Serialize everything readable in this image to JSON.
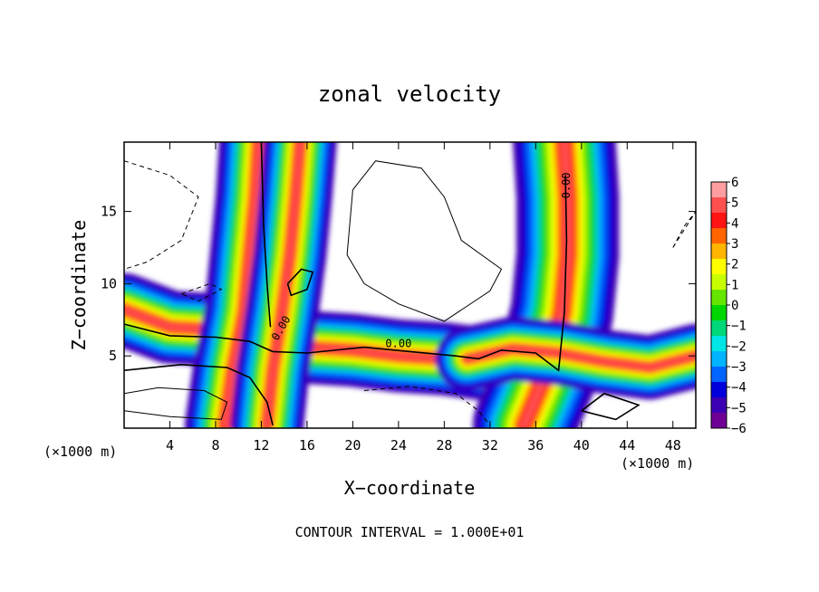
{
  "chart_data": {
    "type": "heatmap",
    "title": "zonal velocity",
    "xlabel": "X−coordinate",
    "ylabel": "Z−coordinate",
    "xlim": [
      0,
      50
    ],
    "ylim": [
      0,
      19.8
    ],
    "x_unit_left": "(×1000 m)",
    "x_unit_right": "(×1000 m)",
    "x_ticks": [
      4,
      8,
      12,
      16,
      20,
      24,
      28,
      32,
      36,
      40,
      44,
      48
    ],
    "x_tick_labels": [
      "4",
      "8",
      "12",
      "16",
      "20",
      "24",
      "28",
      "32",
      "36",
      "40",
      "44",
      "48"
    ],
    "y_ticks": [
      5,
      10,
      15
    ],
    "y_tick_labels": [
      "5",
      "10",
      "15"
    ],
    "footer": "CONTOUR INTERVAL = 1.000E+01",
    "contour_label": "0.00",
    "colorbar": {
      "min": -6,
      "max": 6,
      "labels": [
        "6",
        "5",
        "4",
        "3",
        "2",
        "1",
        "0",
        "−1",
        "−2",
        "−3",
        "−4",
        "−5",
        "−6"
      ],
      "colors": [
        "#ff9ea0",
        "#ff5050",
        "#ff1414",
        "#ff6400",
        "#ffb400",
        "#ffff00",
        "#c8ff00",
        "#64e600",
        "#00d600",
        "#00d87a",
        "#00e6e6",
        "#00b4ff",
        "#0064ff",
        "#0000dc",
        "#3c00b4",
        "#6e0096"
      ]
    },
    "bands": [
      {
        "name": "left-lower-jet",
        "points": [
          [
            0,
            8.2
          ],
          [
            4,
            7.0
          ],
          [
            8,
            6.8
          ],
          [
            10,
            6.6
          ],
          [
            13,
            5.8
          ],
          [
            16,
            5.6
          ],
          [
            20,
            5.4
          ],
          [
            24,
            5.0
          ],
          [
            28,
            4.8
          ],
          [
            31,
            4.5
          ]
        ],
        "width": 3.2
      },
      {
        "name": "column-x10",
        "points": [
          [
            8.8,
            0.2
          ],
          [
            9.5,
            4.0
          ],
          [
            10.5,
            8.0
          ],
          [
            11,
            12
          ],
          [
            11.5,
            16
          ],
          [
            11.8,
            19.8
          ]
        ],
        "width": 3.5
      },
      {
        "name": "column-x15",
        "points": [
          [
            12.5,
            0.2
          ],
          [
            13,
            4
          ],
          [
            13.8,
            8
          ],
          [
            14.5,
            12
          ],
          [
            15,
            16
          ],
          [
            15.4,
            19.8
          ]
        ],
        "width": 3.2
      },
      {
        "name": "right-column",
        "points": [
          [
            35,
            0.2
          ],
          [
            37,
            4
          ],
          [
            38.3,
            8
          ],
          [
            38.8,
            12
          ],
          [
            38.8,
            16
          ],
          [
            38.5,
            19.8
          ]
        ],
        "width": 4.5
      },
      {
        "name": "right-jet",
        "points": [
          [
            30,
            4.8
          ],
          [
            34,
            5.5
          ],
          [
            38,
            5.2
          ],
          [
            42,
            4.6
          ],
          [
            46,
            4.2
          ],
          [
            50,
            5.0
          ]
        ],
        "width": 2.8
      }
    ]
  }
}
